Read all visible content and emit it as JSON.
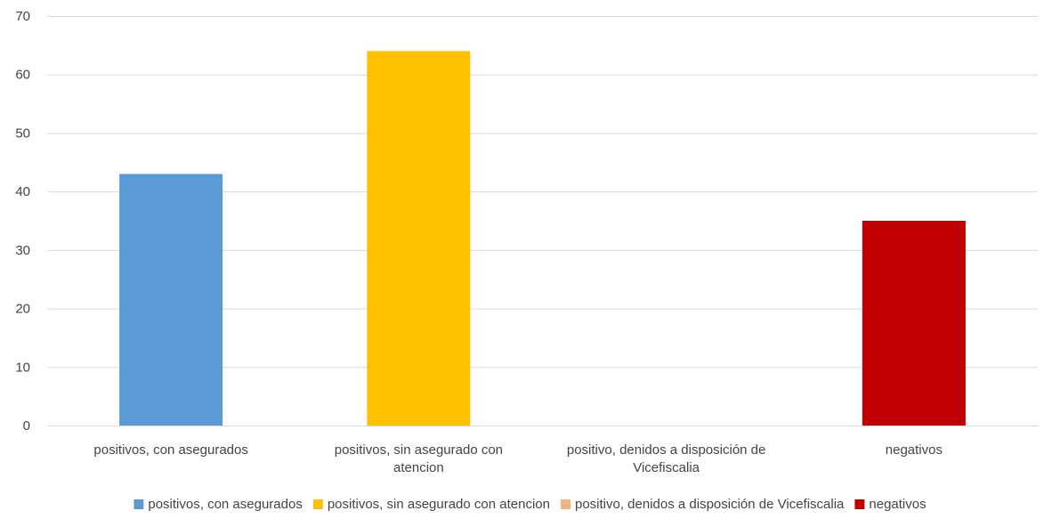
{
  "chart_data": {
    "type": "bar",
    "title": "",
    "xlabel": "",
    "ylabel": "",
    "ylim": [
      0,
      70
    ],
    "yticks": [
      0,
      10,
      20,
      30,
      40,
      50,
      60,
      70
    ],
    "grid": true,
    "legend_position": "bottom",
    "categories": [
      "positivos, con asegurados",
      "positivos, sin asegurado con atencion",
      "positivo, denidos a disposición de Vicefiscalia",
      "negativos"
    ],
    "category_label_lines": [
      [
        "positivos, con asegurados"
      ],
      [
        "positivos, sin asegurado con",
        "atencion"
      ],
      [
        "positivo, denidos a disposición de",
        "Vicefiscalia"
      ],
      [
        "negativos"
      ]
    ],
    "values": [
      43,
      64,
      0,
      35
    ],
    "colors": [
      "#5b9bd5",
      "#ffc000",
      "#f4b183",
      "#c00000"
    ]
  }
}
